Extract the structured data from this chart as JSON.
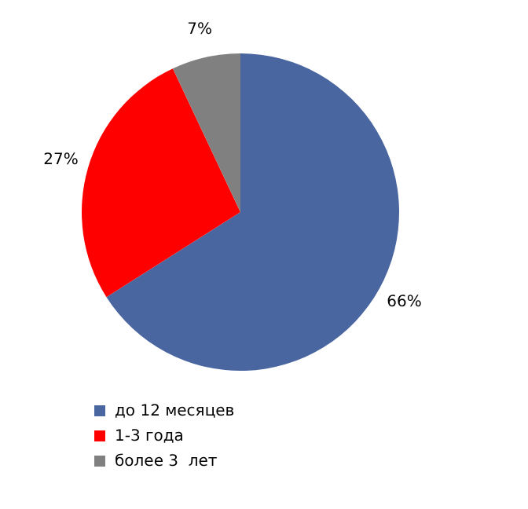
{
  "chart_data": {
    "type": "pie",
    "categories": [
      "до 12 месяцев",
      "1-3 года",
      "более 3  лет"
    ],
    "values": [
      66,
      27,
      7
    ],
    "colors": [
      "#4a66a0",
      "#ff0000",
      "#808080"
    ],
    "value_labels": [
      "66%",
      "27%",
      "7%"
    ],
    "legend": "bottom left"
  }
}
